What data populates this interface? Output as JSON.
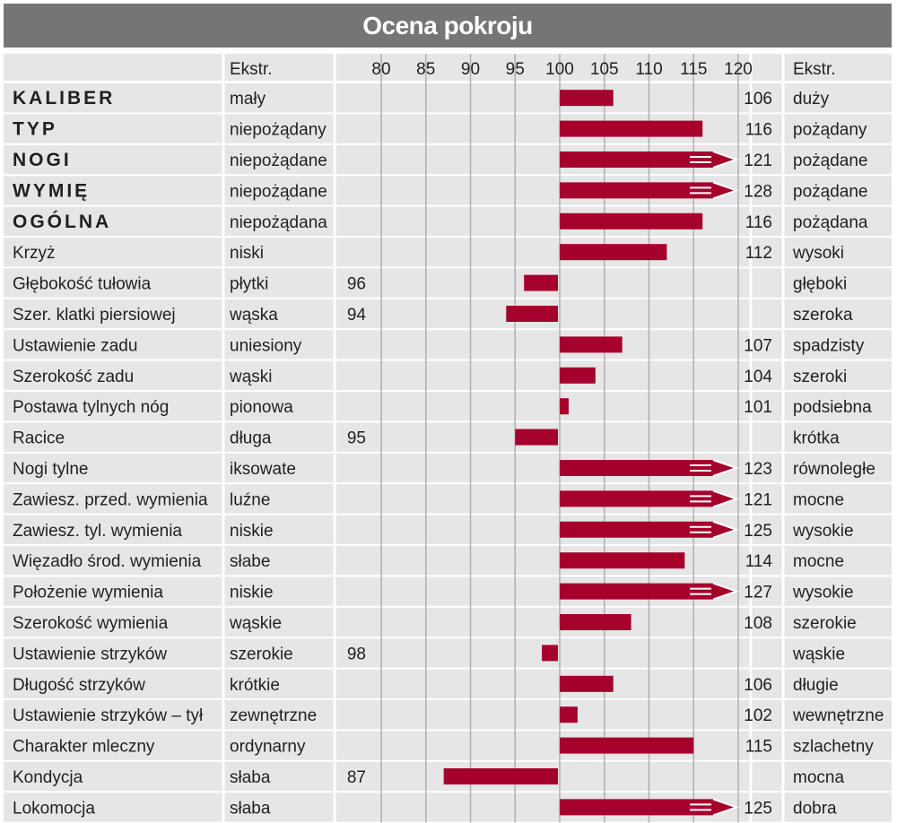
{
  "title": "Ocena pokroju",
  "headers": {
    "left_extreme": "Ekstr.",
    "right_extreme": "Ekstr."
  },
  "colors": {
    "bar": "#a6002c",
    "header_bg": "#757575",
    "row_shade": "#e6e6e6",
    "gridline": "#b0b0b0",
    "text": "#231f20"
  },
  "chart_data": {
    "type": "bar",
    "orientation": "horizontal",
    "baseline": 100,
    "xlim": [
      75,
      121
    ],
    "xticks": [
      80,
      85,
      90,
      95,
      100,
      105,
      110,
      115,
      120
    ],
    "overflow_note": "values above 120 drawn with arrow marker",
    "rows": [
      {
        "trait": "KALIBER",
        "bold": true,
        "low": "mały",
        "high": "duży",
        "value": 106
      },
      {
        "trait": "TYP",
        "bold": true,
        "low": "niepożądany",
        "high": "pożądany",
        "value": 116
      },
      {
        "trait": "NOGI",
        "bold": true,
        "low": "niepożądane",
        "high": "pożądane",
        "value": 121
      },
      {
        "trait": "WYMIĘ",
        "bold": true,
        "low": "niepożądane",
        "high": "pożądane",
        "value": 128
      },
      {
        "trait": "OGÓLNA",
        "bold": true,
        "low": "niepożądana",
        "high": "pożądana",
        "value": 116
      },
      {
        "trait": "Krzyż",
        "bold": false,
        "low": "niski",
        "high": "wysoki",
        "value": 112
      },
      {
        "trait": "Głębokość tułowia",
        "bold": false,
        "low": "płytki",
        "high": "głęboki",
        "value": 96
      },
      {
        "trait": "Szer. klatki piersiowej",
        "bold": false,
        "low": "wąska",
        "high": "szeroka",
        "value": 94
      },
      {
        "trait": "Ustawienie zadu",
        "bold": false,
        "low": "uniesiony",
        "high": "spadzisty",
        "value": 107
      },
      {
        "trait": "Szerokość zadu",
        "bold": false,
        "low": "wąski",
        "high": "szeroki",
        "value": 104
      },
      {
        "trait": "Postawa tylnych nóg",
        "bold": false,
        "low": "pionowa",
        "high": "podsiebna",
        "value": 101
      },
      {
        "trait": "Racice",
        "bold": false,
        "low": "długa",
        "high": "krótka",
        "value": 95
      },
      {
        "trait": "Nogi tylne",
        "bold": false,
        "low": "iksowate",
        "high": "równoległe",
        "value": 123
      },
      {
        "trait": "Zawiesz. przed. wymienia",
        "bold": false,
        "low": "luźne",
        "high": "mocne",
        "value": 121
      },
      {
        "trait": "Zawiesz. tyl. wymienia",
        "bold": false,
        "low": "niskie",
        "high": "wysokie",
        "value": 125
      },
      {
        "trait": "Więzadło środ. wymienia",
        "bold": false,
        "low": "słabe",
        "high": "mocne",
        "value": 114
      },
      {
        "trait": "Położenie wymienia",
        "bold": false,
        "low": "niskie",
        "high": "wysokie",
        "value": 127
      },
      {
        "trait": "Szerokość wymienia",
        "bold": false,
        "low": "wąskie",
        "high": "szerokie",
        "value": 108
      },
      {
        "trait": "Ustawienie strzyków",
        "bold": false,
        "low": "szerokie",
        "high": "wąskie",
        "value": 98
      },
      {
        "trait": "Długość strzyków",
        "bold": false,
        "low": "krótkie",
        "high": "długie",
        "value": 106
      },
      {
        "trait": "Ustawienie strzyków – tył",
        "bold": false,
        "low": "zewnętrzne",
        "high": "wewnętrzne",
        "value": 102
      },
      {
        "trait": "Charakter mleczny",
        "bold": false,
        "low": "ordynarny",
        "high": "szlachetny",
        "value": 115
      },
      {
        "trait": "Kondycja",
        "bold": false,
        "low": "słaba",
        "high": "mocna",
        "value": 87
      },
      {
        "trait": "Lokomocja",
        "bold": false,
        "low": "słaba",
        "high": "dobra",
        "value": 125
      }
    ]
  }
}
